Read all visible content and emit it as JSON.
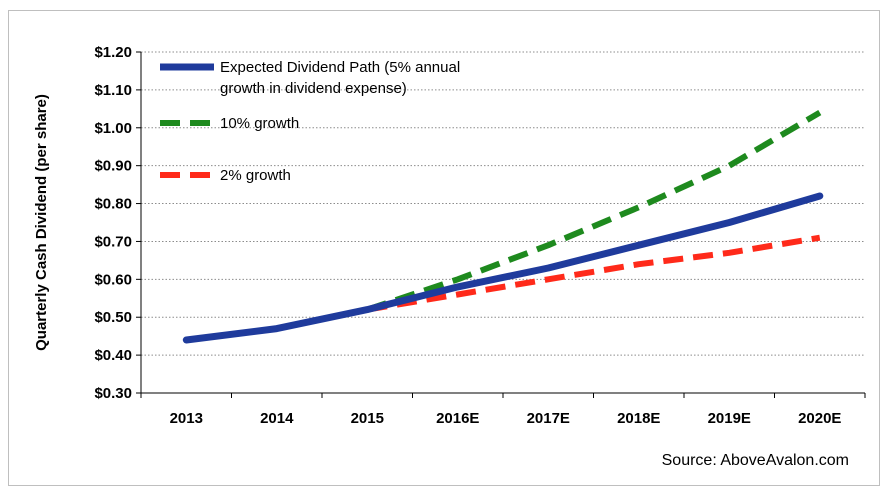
{
  "chart_data": {
    "type": "line",
    "ylabel": "Quarterly Cash Dividend (per share)",
    "xlabel": "",
    "categories": [
      "2013",
      "2014",
      "2015",
      "2016E",
      "2017E",
      "2018E",
      "2019E",
      "2020E"
    ],
    "yticks": [
      "$0.30",
      "$0.40",
      "$0.50",
      "$0.60",
      "$0.70",
      "$0.80",
      "$0.90",
      "$1.00",
      "$1.10",
      "$1.20"
    ],
    "ylim": [
      0.3,
      1.2
    ],
    "grid": "horizontal dotted",
    "legend_position": "top-left",
    "series": [
      {
        "name": "Expected Dividend Path (5% annual growth in dividend expense)",
        "name_lines": [
          "Expected Dividend Path (5% annual",
          "growth in dividend expense)"
        ],
        "style": "solid",
        "color": "#1f3b9c",
        "x": [
          "2013",
          "2014",
          "2015",
          "2016E",
          "2017E",
          "2018E",
          "2019E",
          "2020E"
        ],
        "values": [
          0.44,
          0.47,
          0.52,
          0.58,
          0.63,
          0.69,
          0.75,
          0.82
        ]
      },
      {
        "name": "10% growth",
        "name_lines": [
          "10% growth"
        ],
        "style": "dashed",
        "color": "#1e8a1e",
        "x": [
          "2015",
          "2016E",
          "2017E",
          "2018E",
          "2019E",
          "2020E"
        ],
        "values": [
          0.52,
          0.6,
          0.69,
          0.79,
          0.9,
          1.04
        ]
      },
      {
        "name": "2% growth",
        "name_lines": [
          "2% growth"
        ],
        "style": "dashed",
        "color": "#ff2a1a",
        "x": [
          "2015",
          "2016E",
          "2017E",
          "2018E",
          "2019E",
          "2020E"
        ],
        "values": [
          0.52,
          0.56,
          0.6,
          0.64,
          0.67,
          0.71
        ]
      }
    ],
    "annotation": "Source: AboveAvalon.com"
  }
}
